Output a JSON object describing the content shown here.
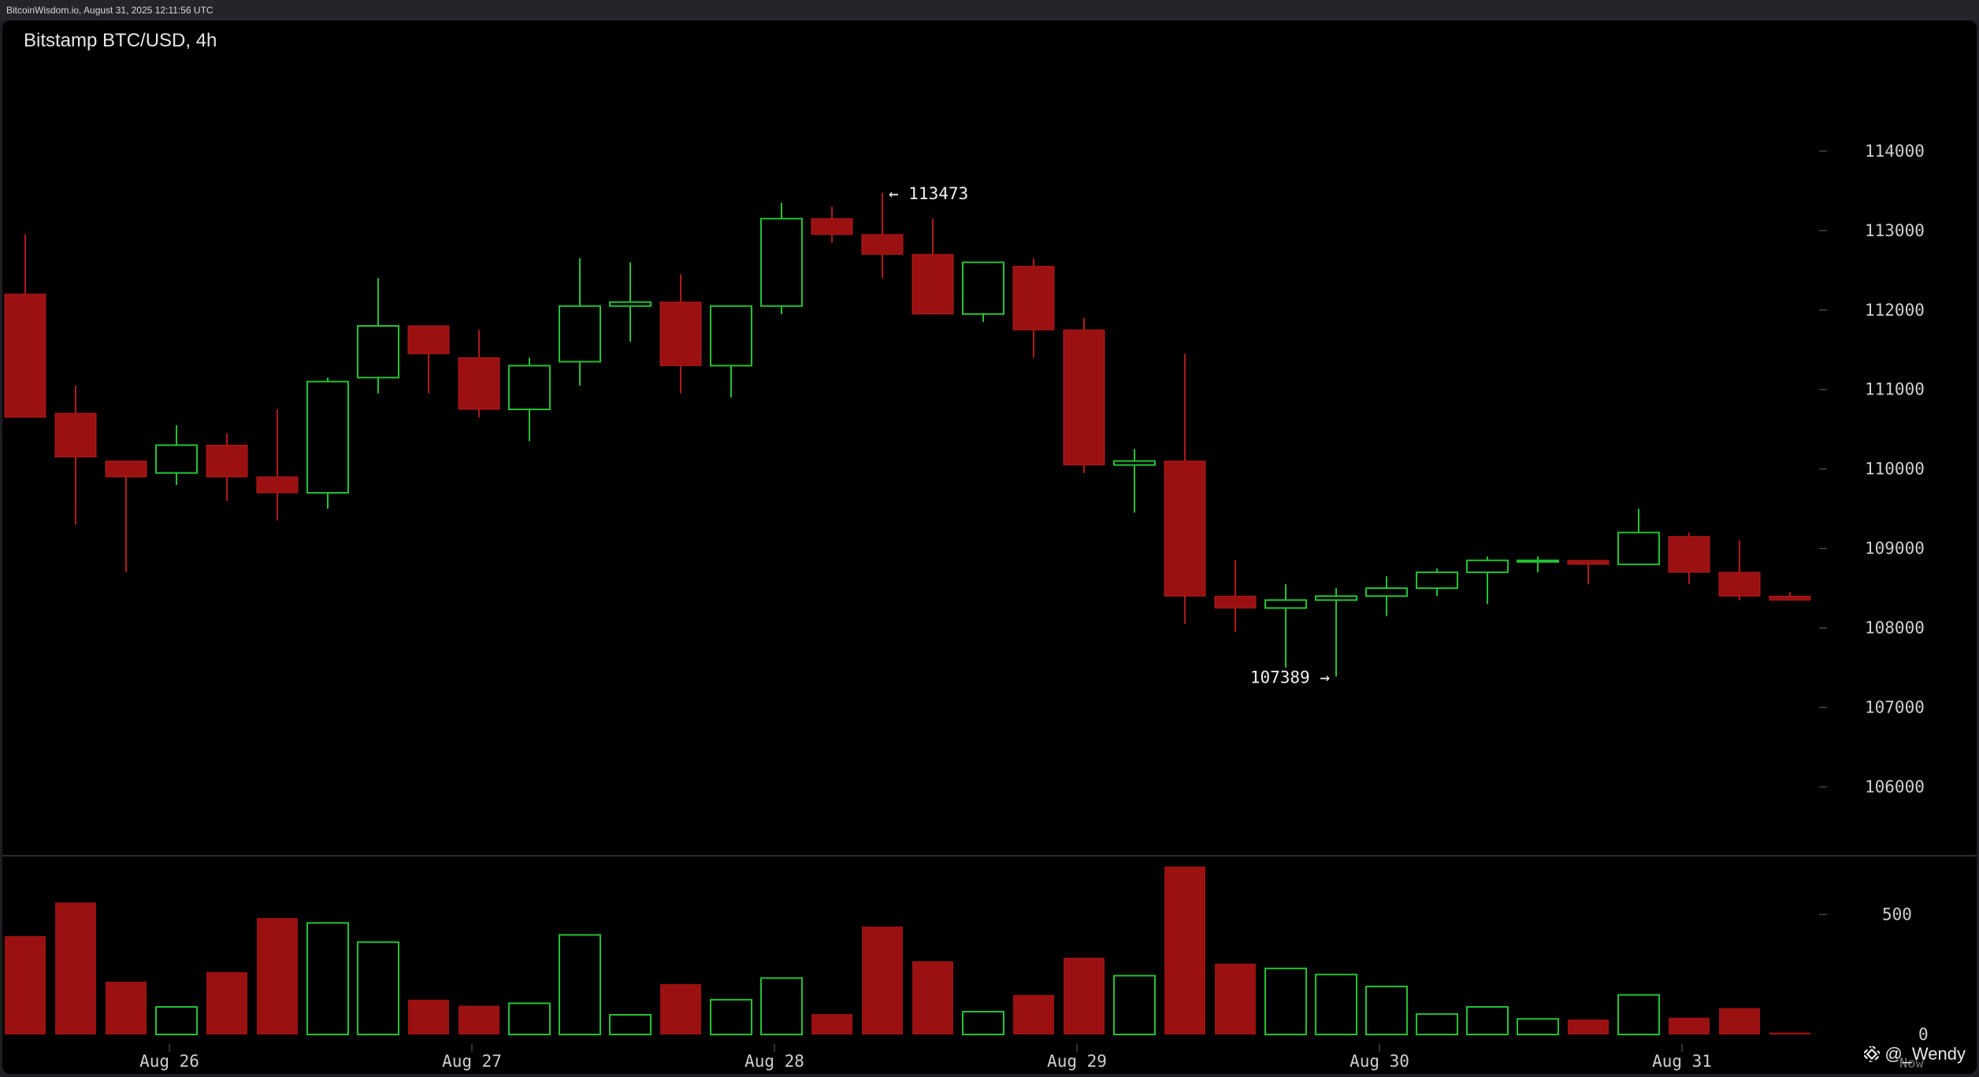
{
  "header": {
    "source_line": "BitcoinWisdom.io, August 31, 2025 12:11:56 UTC"
  },
  "chart": {
    "title": "Bitstamp BTC/USD, 4h"
  },
  "watermark": {
    "text": "@_Wendy",
    "icon": "binance-square-icon"
  },
  "colors": {
    "up": "#22c232",
    "down": "#9b1111",
    "background": "#000000",
    "axis_text": "#cfcfcf"
  },
  "chart_data": {
    "type": "candlestick",
    "title": "Bitstamp BTC/USD, 4h",
    "price_axis": {
      "ticks": [
        106000,
        107000,
        108000,
        109000,
        110000,
        111000,
        112000,
        113000,
        114000
      ],
      "tick_labels": [
        "106000",
        "107000",
        "108000",
        "109000",
        "110000",
        "111000",
        "112000",
        "113000",
        "114000"
      ],
      "range": [
        105450,
        114950
      ]
    },
    "volume_axis": {
      "ticks": [
        0,
        500
      ],
      "tick_labels": [
        "0",
        "500"
      ],
      "range": [
        0,
        700
      ]
    },
    "x_axis": {
      "date_labels": [
        "Aug 26",
        "Aug 27",
        "Aug 28",
        "Aug 29",
        "Aug 30",
        "Aug 31"
      ],
      "date_label_bar_index": [
        3,
        9,
        15,
        21,
        27,
        33
      ],
      "trailing_label": "Now"
    },
    "annotations": [
      {
        "text": "← 113473",
        "value": 113473,
        "bar_index": 17,
        "side": "right"
      },
      {
        "text": "107389 →",
        "value": 107389,
        "bar_index": 26,
        "side": "left"
      }
    ],
    "candles": [
      {
        "o": 112200,
        "h": 112950,
        "l": 110650,
        "c": 110650,
        "v": 410
      },
      {
        "o": 110700,
        "h": 111050,
        "l": 109300,
        "c": 110150,
        "v": 550
      },
      {
        "o": 110100,
        "h": 110100,
        "l": 108700,
        "c": 109900,
        "v": 220
      },
      {
        "o": 109950,
        "h": 110550,
        "l": 109800,
        "c": 110300,
        "v": 115
      },
      {
        "o": 110300,
        "h": 110450,
        "l": 109600,
        "c": 109900,
        "v": 260
      },
      {
        "o": 109900,
        "h": 110750,
        "l": 109350,
        "c": 109700,
        "v": 485
      },
      {
        "o": 109700,
        "h": 111150,
        "l": 109500,
        "c": 111100,
        "v": 465
      },
      {
        "o": 111150,
        "h": 112400,
        "l": 110950,
        "c": 111800,
        "v": 385
      },
      {
        "o": 111800,
        "h": 111800,
        "l": 110950,
        "c": 111450,
        "v": 145
      },
      {
        "o": 111400,
        "h": 111750,
        "l": 110650,
        "c": 110750,
        "v": 120
      },
      {
        "o": 110750,
        "h": 111400,
        "l": 110350,
        "c": 111300,
        "v": 130
      },
      {
        "o": 111350,
        "h": 112650,
        "l": 111050,
        "c": 112050,
        "v": 415
      },
      {
        "o": 112050,
        "h": 112600,
        "l": 111600,
        "c": 112100,
        "v": 82
      },
      {
        "o": 112100,
        "h": 112450,
        "l": 110950,
        "c": 111300,
        "v": 210
      },
      {
        "o": 111300,
        "h": 112050,
        "l": 110900,
        "c": 112050,
        "v": 145
      },
      {
        "o": 112050,
        "h": 113350,
        "l": 111950,
        "c": 113150,
        "v": 235
      },
      {
        "o": 113150,
        "h": 113300,
        "l": 112850,
        "c": 112950,
        "v": 85
      },
      {
        "o": 112950,
        "h": 113473,
        "l": 112400,
        "c": 112700,
        "v": 450
      },
      {
        "o": 112700,
        "h": 113150,
        "l": 111950,
        "c": 111950,
        "v": 305
      },
      {
        "o": 111950,
        "h": 112600,
        "l": 111850,
        "c": 112600,
        "v": 95
      },
      {
        "o": 112550,
        "h": 112650,
        "l": 111400,
        "c": 111750,
        "v": 165
      },
      {
        "o": 111750,
        "h": 111900,
        "l": 109950,
        "c": 110050,
        "v": 320
      },
      {
        "o": 110050,
        "h": 110250,
        "l": 109450,
        "c": 110100,
        "v": 245
      },
      {
        "o": 110100,
        "h": 111450,
        "l": 108050,
        "c": 108400,
        "v": 700
      },
      {
        "o": 108400,
        "h": 108850,
        "l": 107950,
        "c": 108250,
        "v": 295
      },
      {
        "o": 108250,
        "h": 108550,
        "l": 107500,
        "c": 108350,
        "v": 275
      },
      {
        "o": 108350,
        "h": 108500,
        "l": 107389,
        "c": 108400,
        "v": 250
      },
      {
        "o": 108400,
        "h": 108650,
        "l": 108150,
        "c": 108500,
        "v": 200
      },
      {
        "o": 108500,
        "h": 108750,
        "l": 108400,
        "c": 108700,
        "v": 85
      },
      {
        "o": 108700,
        "h": 108900,
        "l": 108300,
        "c": 108850,
        "v": 115
      },
      {
        "o": 108850,
        "h": 108900,
        "l": 108700,
        "c": 108850,
        "v": 65
      },
      {
        "o": 108850,
        "h": 108850,
        "l": 108550,
        "c": 108800,
        "v": 62
      },
      {
        "o": 108800,
        "h": 109500,
        "l": 108800,
        "c": 109200,
        "v": 165
      },
      {
        "o": 109150,
        "h": 109200,
        "l": 108550,
        "c": 108700,
        "v": 70
      },
      {
        "o": 108700,
        "h": 109100,
        "l": 108350,
        "c": 108400,
        "v": 110
      },
      {
        "o": 108400,
        "h": 108450,
        "l": 108350,
        "c": 108350,
        "v": 8
      }
    ]
  }
}
